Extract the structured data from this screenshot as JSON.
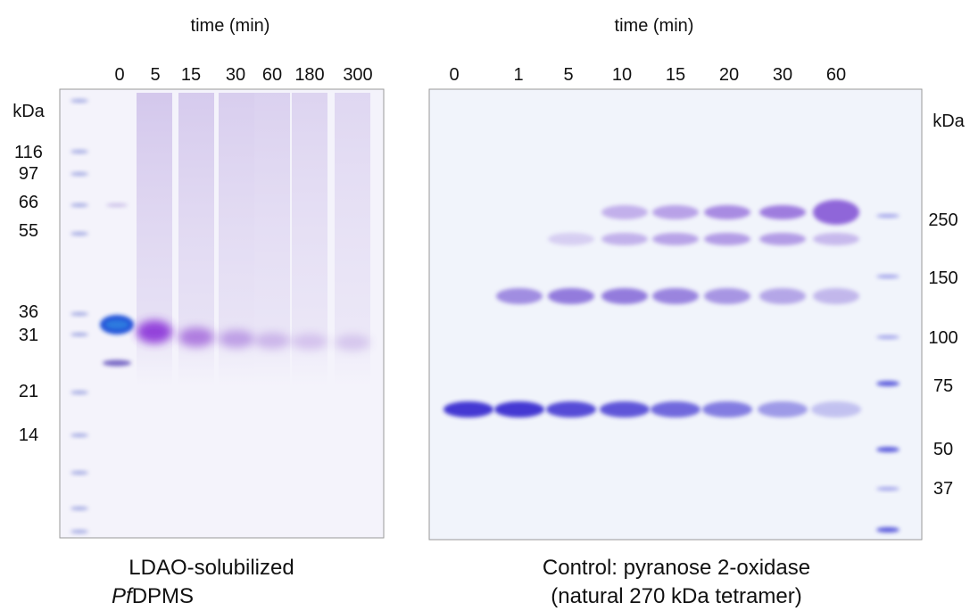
{
  "left_panel": {
    "header": "time (min)",
    "lanes": [
      "0",
      "5",
      "15",
      "30",
      "60",
      "180",
      "300"
    ],
    "unit": "kDa",
    "markers": [
      "116",
      "97",
      "66",
      "55",
      "36",
      "31",
      "21",
      "14"
    ],
    "caption": {
      "line1": "LDAO-solubilized",
      "line2_italic": "Pf",
      "line2_rest": "DPMS"
    }
  },
  "right_panel": {
    "header": "time (min)",
    "lanes": [
      "0",
      "1",
      "5",
      "10",
      "15",
      "20",
      "30",
      "60"
    ],
    "unit": "kDa",
    "markers": [
      "250",
      "150",
      "100",
      "75",
      "50",
      "37"
    ],
    "caption": {
      "line1": "Control: pyranose 2-oxidase",
      "line2": "(natural 270 kDa tetramer)"
    }
  }
}
